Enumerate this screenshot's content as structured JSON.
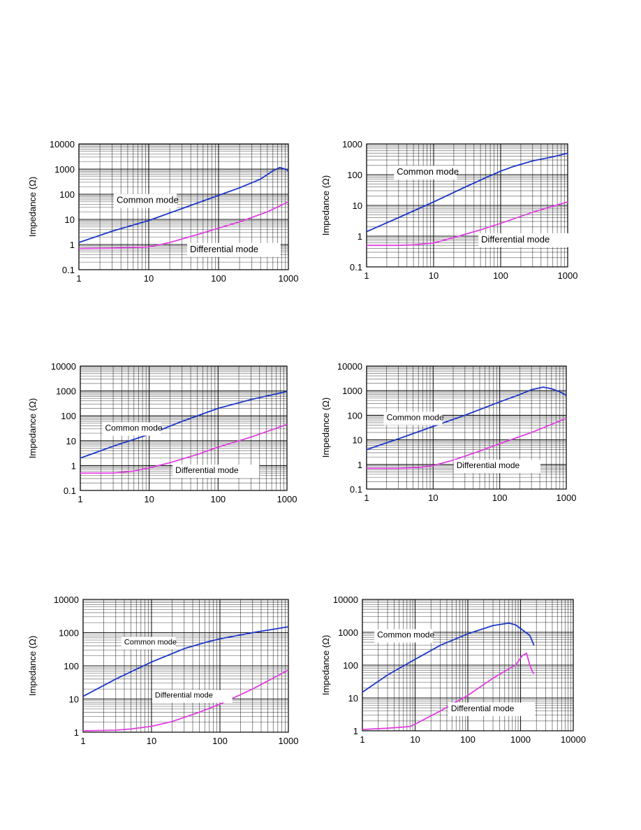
{
  "colors": {
    "common": "#1c36c8",
    "differential": "#e040e0",
    "grid": "#000000"
  },
  "chart_data": [
    {
      "type": "line",
      "xscale": "log",
      "yscale": "log",
      "xlim": [
        1,
        1000
      ],
      "ylim": [
        0.1,
        10000
      ],
      "xticks": [
        "1",
        "10",
        "100",
        "1000"
      ],
      "yticks": [
        "0.1",
        "1",
        "10",
        "100",
        "1000",
        "10000"
      ],
      "ylabel": "Impedance (Ω)",
      "xlabel": "",
      "title": "",
      "grid": true,
      "annotations": [
        "Common mode",
        "Differential mode"
      ],
      "series": [
        {
          "name": "Common mode",
          "x": [
            1,
            3,
            10,
            30,
            100,
            200,
            400,
            600,
            750,
            900,
            1000
          ],
          "y": [
            1.2,
            3.4,
            9,
            27,
            90,
            180,
            400,
            850,
            1150,
            1000,
            850
          ]
        },
        {
          "name": "Differential mode",
          "x": [
            1,
            3,
            10,
            20,
            50,
            100,
            200,
            500,
            1000
          ],
          "y": [
            0.7,
            0.72,
            0.8,
            1.2,
            2.5,
            4.5,
            8,
            20,
            50
          ]
        }
      ]
    },
    {
      "type": "line",
      "xscale": "log",
      "yscale": "log",
      "xlim": [
        1,
        1000
      ],
      "ylim": [
        0.1,
        1000
      ],
      "xticks": [
        "1",
        "10",
        "100",
        "1000"
      ],
      "yticks": [
        "0.1",
        "1",
        "10",
        "100",
        "1000"
      ],
      "ylabel": "Impedance (Ω)",
      "xlabel": "",
      "title": "",
      "grid": true,
      "annotations": [
        "Common mode",
        "Differential mode"
      ],
      "series": [
        {
          "name": "Common mode",
          "x": [
            1,
            3,
            10,
            30,
            60,
            100,
            150,
            300,
            600,
            1000
          ],
          "y": [
            1.4,
            4,
            13,
            40,
            80,
            130,
            180,
            280,
            380,
            500
          ]
        },
        {
          "name": "Differential mode",
          "x": [
            1,
            3,
            5,
            10,
            20,
            50,
            100,
            300,
            1000
          ],
          "y": [
            0.5,
            0.5,
            0.52,
            0.6,
            0.9,
            1.6,
            2.6,
            6,
            13
          ]
        }
      ]
    },
    {
      "type": "line",
      "xscale": "log",
      "yscale": "log",
      "xlim": [
        1,
        1000
      ],
      "ylim": [
        0.1,
        10000
      ],
      "xticks": [
        "1",
        "10",
        "100",
        "1000"
      ],
      "yticks": [
        "0.1",
        "1",
        "10",
        "100",
        "1000",
        "10000"
      ],
      "ylabel": "Impedance (Ω)",
      "xlabel": "",
      "title": "",
      "grid": true,
      "annotations": [
        "Common mode",
        "Differential mode"
      ],
      "series": [
        {
          "name": "Common mode",
          "x": [
            1,
            3,
            10,
            30,
            100,
            300,
            1000
          ],
          "y": [
            2,
            6,
            18,
            60,
            200,
            450,
            950
          ]
        },
        {
          "name": "Differential mode",
          "x": [
            1,
            3,
            6,
            10,
            20,
            50,
            100,
            300,
            1000
          ],
          "y": [
            0.5,
            0.5,
            0.6,
            0.8,
            1.3,
            2.8,
            5.5,
            14,
            45
          ]
        }
      ]
    },
    {
      "type": "line",
      "xscale": "log",
      "yscale": "log",
      "xlim": [
        1,
        1000
      ],
      "ylim": [
        0.1,
        10000
      ],
      "xticks": [
        "1",
        "10",
        "100",
        "1000"
      ],
      "yticks": [
        "0.1",
        "1",
        "10",
        "100",
        "1000",
        "10000"
      ],
      "ylabel": "Impedance (Ω)",
      "xlabel": "",
      "title": "",
      "grid": true,
      "annotations": [
        "Common mode",
        "Differential mode"
      ],
      "series": [
        {
          "name": "Common mode",
          "x": [
            1,
            3,
            10,
            30,
            100,
            200,
            300,
            450,
            600,
            800,
            1000
          ],
          "y": [
            4,
            11,
            35,
            100,
            350,
            700,
            1100,
            1400,
            1200,
            900,
            650
          ]
        },
        {
          "name": "Differential mode",
          "x": [
            1,
            3,
            6,
            10,
            20,
            50,
            100,
            300,
            1000
          ],
          "y": [
            0.7,
            0.7,
            0.75,
            0.9,
            1.5,
            3.5,
            7,
            20,
            75
          ]
        }
      ]
    },
    {
      "type": "line",
      "xscale": "log",
      "yscale": "log",
      "xlim": [
        1,
        1000
      ],
      "ylim": [
        1,
        10000
      ],
      "xticks": [
        "1",
        "10",
        "100",
        "1000"
      ],
      "yticks": [
        "1",
        "10",
        "100",
        "1000",
        "10000"
      ],
      "ylabel": "Impedance (Ω)",
      "xlabel": "",
      "title": "",
      "grid": true,
      "annotations": [
        "Common mode",
        "Differential mode"
      ],
      "series": [
        {
          "name": "Common mode",
          "x": [
            1,
            3,
            10,
            30,
            60,
            100,
            300,
            1000
          ],
          "y": [
            12,
            40,
            130,
            330,
            500,
            650,
            1000,
            1500
          ]
        },
        {
          "name": "Differential mode",
          "x": [
            1,
            3,
            5,
            10,
            20,
            50,
            100,
            300,
            1000
          ],
          "y": [
            1.1,
            1.15,
            1.25,
            1.5,
            2.1,
            4,
            7,
            20,
            75
          ]
        }
      ]
    },
    {
      "type": "line",
      "xscale": "log",
      "yscale": "log",
      "xlim": [
        1,
        10000
      ],
      "ylim": [
        1,
        10000
      ],
      "xticks": [
        "1",
        "10",
        "100",
        "1000",
        "10000"
      ],
      "yticks": [
        "1",
        "10",
        "100",
        "1000",
        "10000"
      ],
      "ylabel": "Impedance (Ω)",
      "xlabel": "",
      "title": "",
      "grid": true,
      "annotations": [
        "Common mode",
        "Differential mode"
      ],
      "series": [
        {
          "name": "Common mode",
          "x": [
            1,
            3,
            10,
            30,
            100,
            300,
            600,
            800,
            1000,
            1500,
            1800
          ],
          "y": [
            15,
            50,
            150,
            400,
            900,
            1600,
            1900,
            1700,
            1300,
            800,
            400
          ]
        },
        {
          "name": "Differential mode",
          "x": [
            1,
            3,
            8,
            10,
            30,
            100,
            300,
            800,
            1100,
            1300,
            1500,
            1700,
            1800
          ],
          "y": [
            1.1,
            1.2,
            1.35,
            1.6,
            4,
            12,
            40,
            100,
            200,
            230,
            100,
            60,
            55
          ]
        }
      ]
    }
  ]
}
